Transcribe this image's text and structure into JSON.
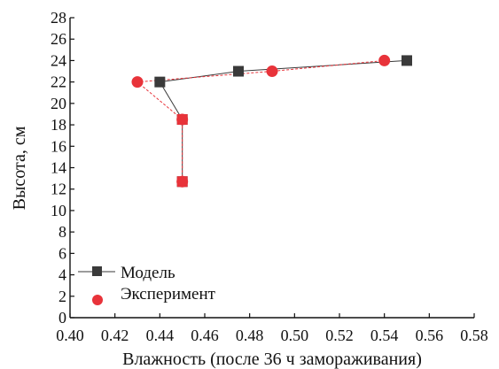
{
  "chart_data": {
    "type": "scatter",
    "xlabel": "Влажность (после 36 ч замораживания)",
    "ylabel": "Высота, см",
    "xlim": [
      0.4,
      0.58
    ],
    "ylim": [
      0,
      28
    ],
    "x_ticks": [
      "0.40",
      "0.42",
      "0.44",
      "0.46",
      "0.48",
      "0.50",
      "0.52",
      "0.54",
      "0.56",
      "0.58"
    ],
    "y_ticks": [
      "0",
      "2",
      "4",
      "6",
      "8",
      "10",
      "12",
      "14",
      "16",
      "18",
      "20",
      "22",
      "24",
      "26",
      "28"
    ],
    "grid": false,
    "legend_position": "bottom-left",
    "series": [
      {
        "name": "Модель",
        "marker": "square",
        "color": "#3a3a3a",
        "line": "solid",
        "points": [
          {
            "x": 0.45,
            "y": 12.7
          },
          {
            "x": 0.45,
            "y": 18.5
          },
          {
            "x": 0.44,
            "y": 22
          },
          {
            "x": 0.475,
            "y": 23
          },
          {
            "x": 0.55,
            "y": 24
          }
        ]
      },
      {
        "name": "Эксперимент",
        "marker": "circle",
        "color": "#e8333a",
        "line": "dashed",
        "points": [
          {
            "x": 0.45,
            "y": 12.7
          },
          {
            "x": 0.45,
            "y": 18.5
          },
          {
            "x": 0.43,
            "y": 22
          },
          {
            "x": 0.49,
            "y": 23
          },
          {
            "x": 0.54,
            "y": 24
          }
        ]
      }
    ]
  }
}
